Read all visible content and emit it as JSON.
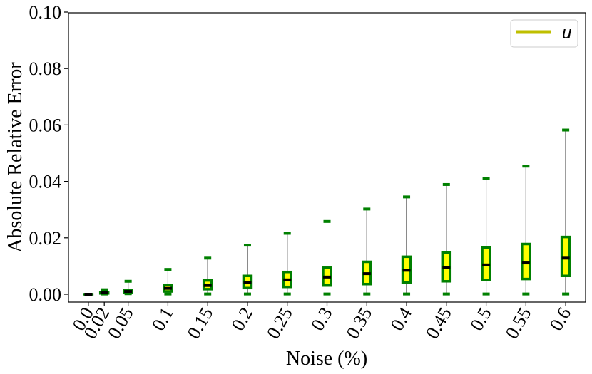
{
  "chart_data": {
    "type": "box",
    "xlabel": "Noise (%)",
    "ylabel": "Absolute Relative Error",
    "ylim": [
      0,
      0.1
    ],
    "yticks": [
      "0.00",
      "0.02",
      "0.04",
      "0.06",
      "0.08",
      "0.10"
    ],
    "legend": {
      "label": "u",
      "placement": "top-right"
    },
    "colors": {
      "box_fill": "#ffff00",
      "box_edge": "#008000",
      "median": "#000000",
      "whisker": "#000000",
      "legend_line": "#bfbf00"
    },
    "categories": [
      "0.0",
      "0.02",
      "0.05",
      "0.1",
      "0.15",
      "0.2",
      "0.25",
      "0.3",
      "0.35",
      "0.4",
      "0.45",
      "0.5",
      "0.55",
      "0.6"
    ],
    "noise": [
      0.0,
      0.02,
      0.05,
      0.1,
      0.15,
      0.2,
      0.25,
      0.3,
      0.35,
      0.4,
      0.45,
      0.5,
      0.55,
      0.6
    ],
    "boxes": [
      {
        "whislo": 0.0,
        "q1": 0.0,
        "med": 0.0,
        "q3": 0.0,
        "whishi": 0.0
      },
      {
        "whislo": 0.0001,
        "q1": 0.0003,
        "med": 0.0005,
        "q3": 0.0008,
        "whishi": 0.0016
      },
      {
        "whislo": 0.0002,
        "q1": 0.0006,
        "med": 0.001,
        "q3": 0.0015,
        "whishi": 0.0046
      },
      {
        "whislo": 0.0001,
        "q1": 0.001,
        "med": 0.0021,
        "q3": 0.0033,
        "whishi": 0.0088
      },
      {
        "whislo": 0.0001,
        "q1": 0.0018,
        "med": 0.0031,
        "q3": 0.0049,
        "whishi": 0.0128
      },
      {
        "whislo": 0.0001,
        "q1": 0.0022,
        "med": 0.0042,
        "q3": 0.0065,
        "whishi": 0.0174
      },
      {
        "whislo": 0.0001,
        "q1": 0.0026,
        "med": 0.0051,
        "q3": 0.0079,
        "whishi": 0.0216
      },
      {
        "whislo": 0.0001,
        "q1": 0.0031,
        "med": 0.0061,
        "q3": 0.0094,
        "whishi": 0.0258
      },
      {
        "whislo": 0.0001,
        "q1": 0.0036,
        "med": 0.0073,
        "q3": 0.0115,
        "whishi": 0.0302
      },
      {
        "whislo": 0.0001,
        "q1": 0.0042,
        "med": 0.0085,
        "q3": 0.0133,
        "whishi": 0.0345
      },
      {
        "whislo": 0.0001,
        "q1": 0.0046,
        "med": 0.0095,
        "q3": 0.0148,
        "whishi": 0.0389
      },
      {
        "whislo": 0.0001,
        "q1": 0.005,
        "med": 0.0104,
        "q3": 0.0165,
        "whishi": 0.0411
      },
      {
        "whislo": 0.0001,
        "q1": 0.0054,
        "med": 0.0111,
        "q3": 0.0178,
        "whishi": 0.0454
      },
      {
        "whislo": 0.0001,
        "q1": 0.0065,
        "med": 0.0128,
        "q3": 0.0203,
        "whishi": 0.0582
      }
    ]
  }
}
